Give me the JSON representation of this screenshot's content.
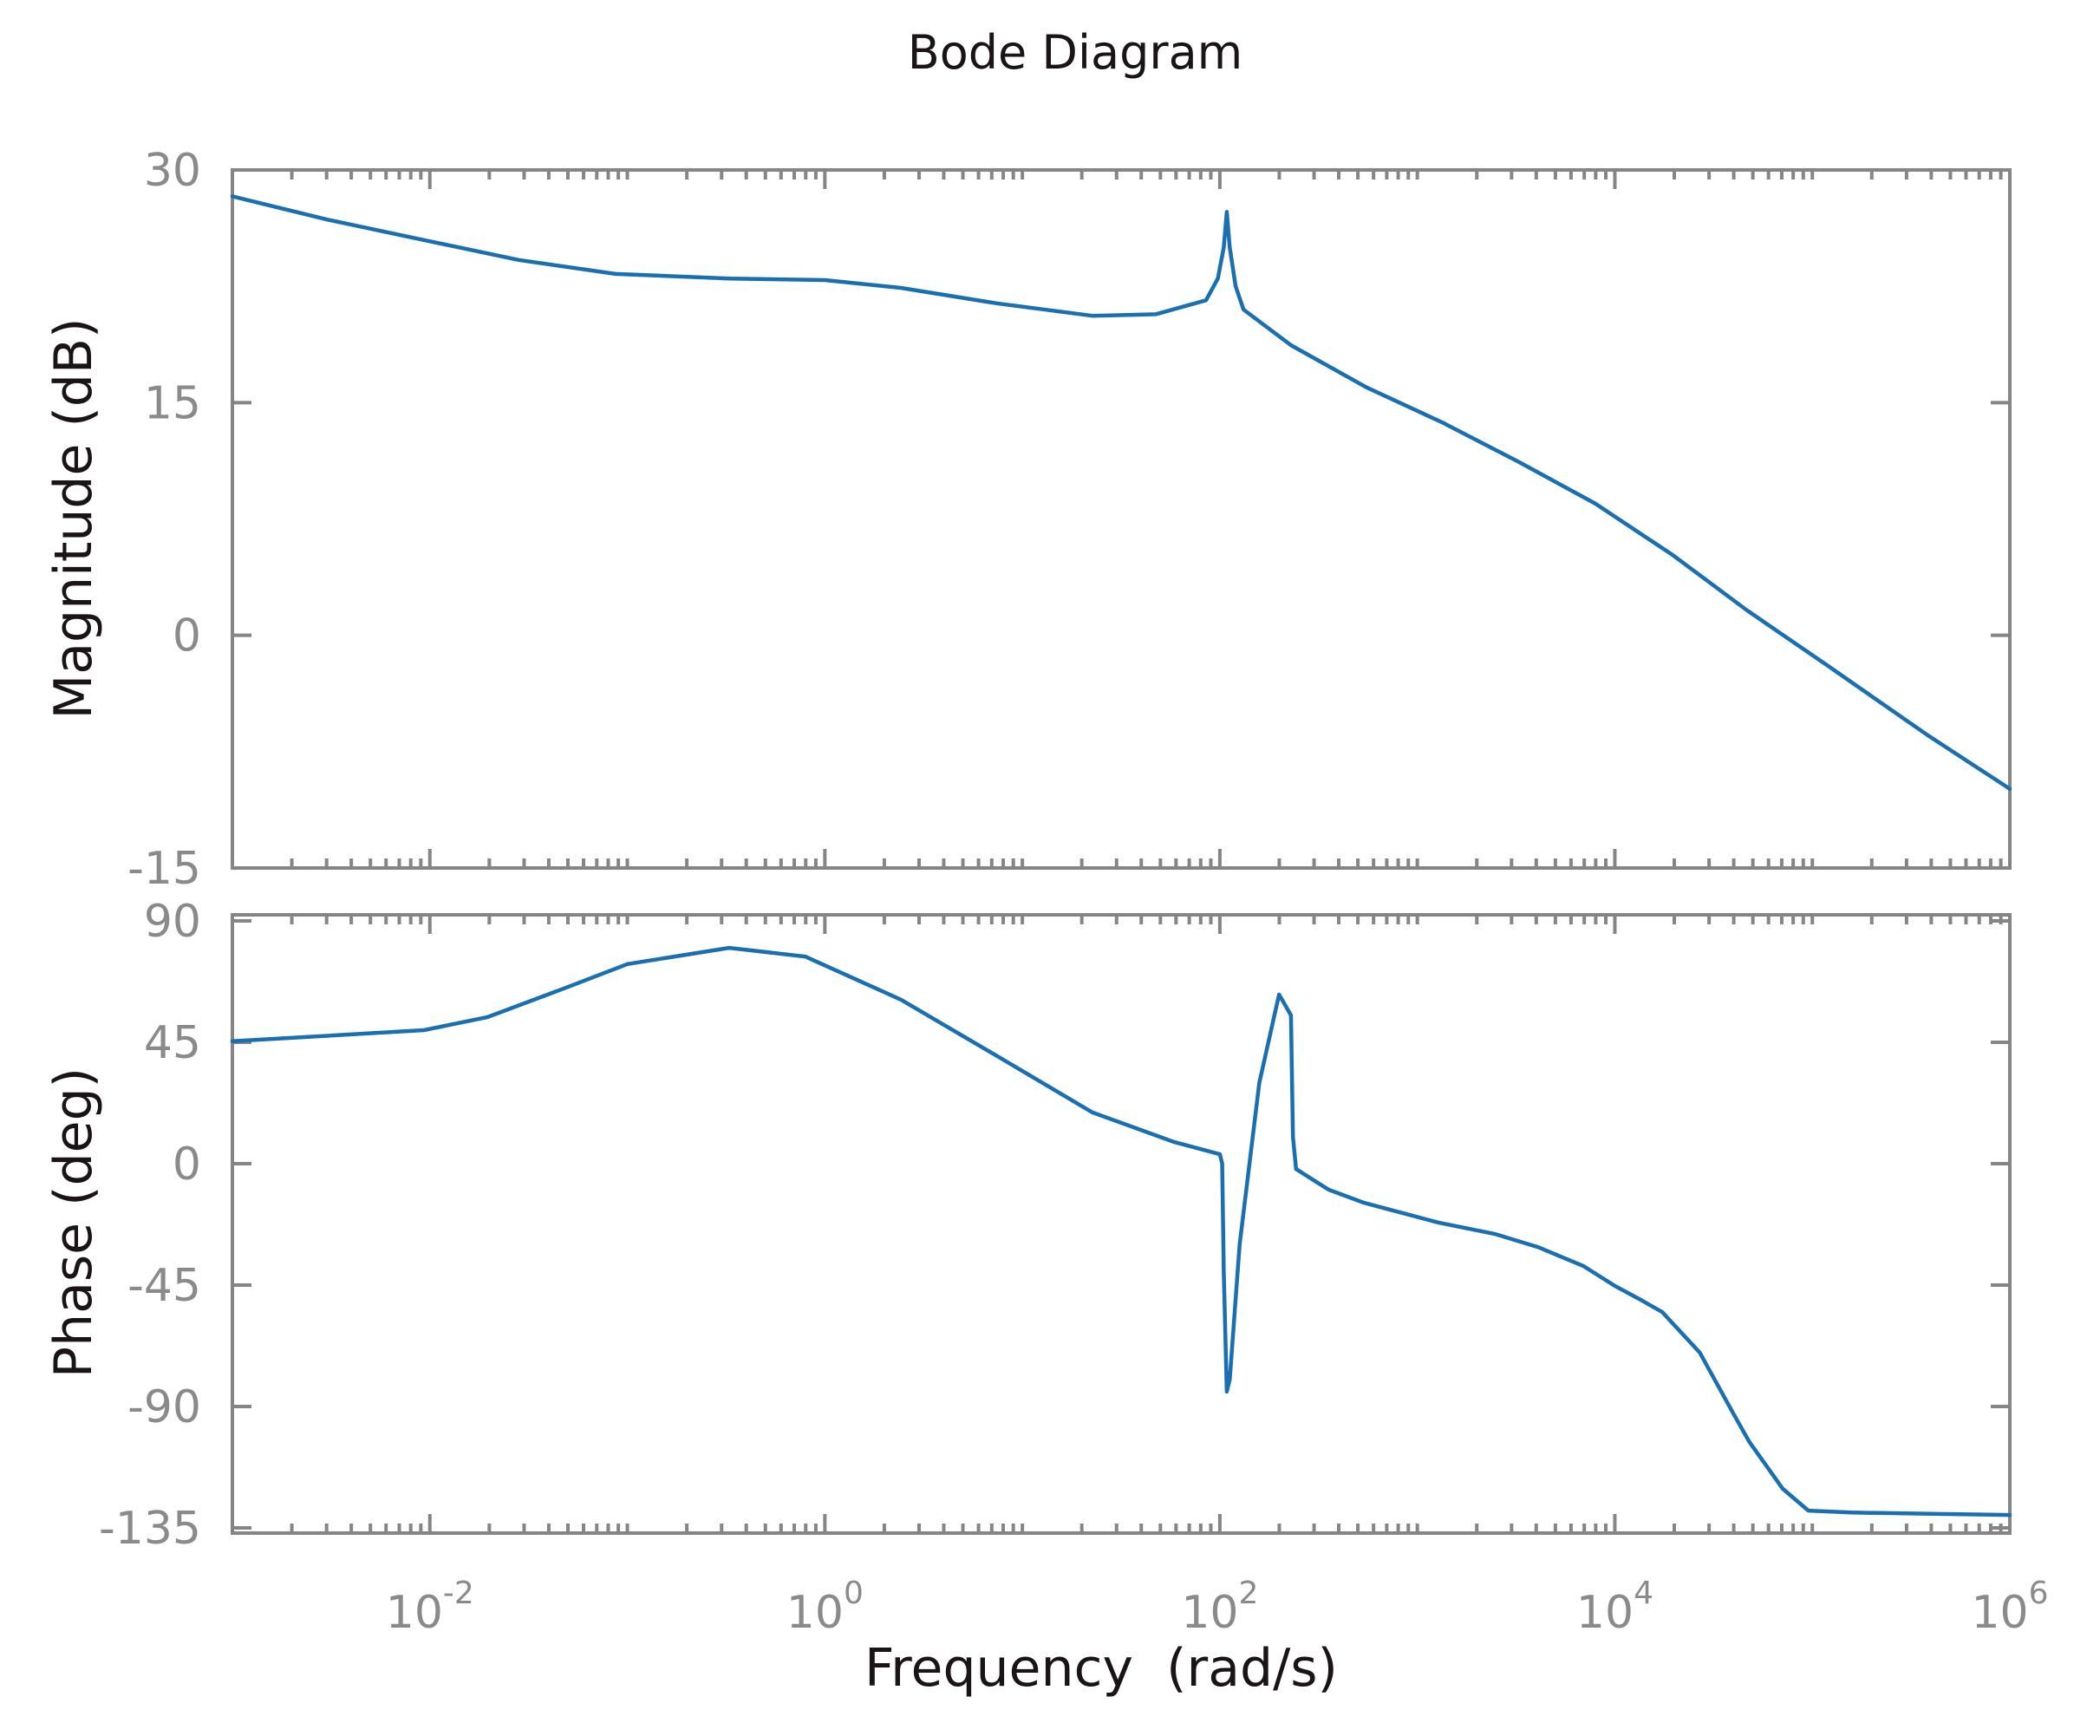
{
  "chart_data": {
    "type": "line",
    "title": "Bode Diagram",
    "xlabel": "Frequency  (rad/s)",
    "xscale": "log",
    "xlim": [
      0.001,
      1000000
    ],
    "x_tick_labels": [
      {
        "base": "10",
        "exp": "-2",
        "value": 0.01
      },
      {
        "base": "10",
        "exp": "0",
        "value": 1
      },
      {
        "base": "10",
        "exp": "2",
        "value": 100
      },
      {
        "base": "10",
        "exp": "4",
        "value": 10000
      },
      {
        "base": "10",
        "exp": "6",
        "value": 1000000
      }
    ],
    "line_color": "#1a6fb0",
    "axis_color": "#858585",
    "grid": false,
    "legend": null,
    "subplots": [
      {
        "name": "magnitude",
        "ylabel": "Magnitude (dB)",
        "ylim": [
          -15,
          30
        ],
        "yticks": [
          30,
          15,
          0,
          -15
        ],
        "series": [
          {
            "name": "Magnitude",
            "x_log10": [
              -3,
              -2.52,
              -2.0,
              -1.55,
              -1.06,
              -0.48,
              0,
              0.385,
              0.87,
              1.355,
              1.675,
              1.93,
              1.99,
              2.02,
              2.035,
              2.05,
              2.08,
              2.12,
              2.36,
              2.74,
              3.13,
              3.51,
              3.9,
              4.29,
              4.67,
              5.06,
              5.58,
              6.0
            ],
            "values": [
              28.3,
              26.8,
              25.4,
              24.2,
              23.3,
              23.0,
              22.9,
              22.4,
              21.4,
              20.6,
              20.7,
              21.6,
              23.0,
              25.0,
              27.3,
              25.0,
              22.5,
              21.0,
              18.7,
              16.0,
              13.7,
              11.2,
              8.5,
              5.2,
              1.6,
              -1.8,
              -6.4,
              -9.9
            ]
          }
        ]
      },
      {
        "name": "phase",
        "ylabel": "Phase (deg)",
        "ylim": [
          -137,
          92
        ],
        "yticks": [
          90,
          45,
          0,
          -45,
          -90,
          -135
        ],
        "series": [
          {
            "name": "Phase",
            "x_log10": [
              -3,
              -2.03,
              -1.71,
              -1.32,
              -1.0,
              -0.485,
              -0.1,
              0.385,
              0.87,
              1.355,
              1.77,
              2.0,
              2.012,
              2.02,
              2.035,
              2.05,
              2.1,
              2.2,
              2.3,
              2.36,
              2.37,
              2.386,
              2.55,
              2.73,
              3.11,
              3.39,
              3.61,
              3.84,
              4.0,
              4.12,
              4.24,
              4.43,
              4.6,
              4.68,
              4.85,
              4.98,
              5.2,
              5.6,
              6.0
            ],
            "values": [
              45.4,
              49.5,
              54.3,
              65.0,
              74.0,
              80.0,
              76.8,
              60.8,
              40.0,
              19.0,
              8.0,
              3.5,
              0,
              -40,
              -84.5,
              -80,
              -30,
              30,
              62.7,
              55,
              10,
              -2.0,
              -9.6,
              -14.5,
              -21.9,
              -26.0,
              -30.9,
              -37.9,
              -45.3,
              -50.0,
              -55.0,
              -70.0,
              -92.6,
              -103.0,
              -120.5,
              -128.6,
              -129.3,
              -129.8,
              -130.2
            ]
          }
        ]
      }
    ]
  }
}
